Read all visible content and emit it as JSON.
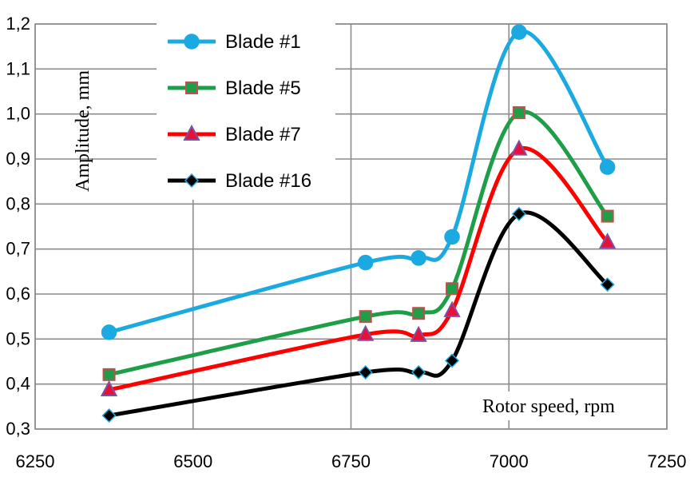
{
  "chart_data": {
    "type": "line",
    "title": "",
    "xlabel": "Rotor speed, rpm",
    "ylabel": "Amplitude, mm",
    "xlim": [
      6250,
      7250
    ],
    "ylim": [
      0.3,
      1.2
    ],
    "x_ticks": [
      6250,
      6500,
      6750,
      7000,
      7250
    ],
    "x_tick_labels": [
      "6250",
      "6500",
      "6750",
      "7000",
      "7250"
    ],
    "y_ticks": [
      0.3,
      0.4,
      0.5,
      0.6,
      0.7,
      0.8,
      0.9,
      1.0,
      1.1,
      1.2
    ],
    "y_tick_labels": [
      "0,3",
      "0,4",
      "0,5",
      "0,6",
      "0,7",
      "0,8",
      "0,9",
      "1,0",
      "1,1",
      "1,2"
    ],
    "grid": true,
    "legend_position": "top-left",
    "x": [
      6367,
      6773,
      6857,
      6910,
      7016,
      7156
    ],
    "series": [
      {
        "name": "Blade #1",
        "values": [
          0.515,
          0.67,
          0.68,
          0.727,
          1.182,
          0.882
        ],
        "color": "#1BA9E1",
        "marker": "circle"
      },
      {
        "name": "Blade #5",
        "values": [
          0.421,
          0.55,
          0.557,
          0.612,
          1.003,
          0.773
        ],
        "color": "#1E9E47",
        "marker": "square",
        "marker_fill": "#1E9E47",
        "marker_edge": "#C0504D"
      },
      {
        "name": "Blade #7",
        "values": [
          0.387,
          0.51,
          0.508,
          0.563,
          0.922,
          0.715
        ],
        "color": "#FF0000",
        "marker": "triangle",
        "marker_fill": "#E8103A",
        "marker_edge": "#7F4FA0"
      },
      {
        "name": "Blade #16",
        "values": [
          0.33,
          0.426,
          0.426,
          0.452,
          0.778,
          0.621
        ],
        "color": "#000000",
        "marker": "diamond",
        "marker_fill": "#000000",
        "marker_edge": "#1BA9E1"
      }
    ]
  }
}
